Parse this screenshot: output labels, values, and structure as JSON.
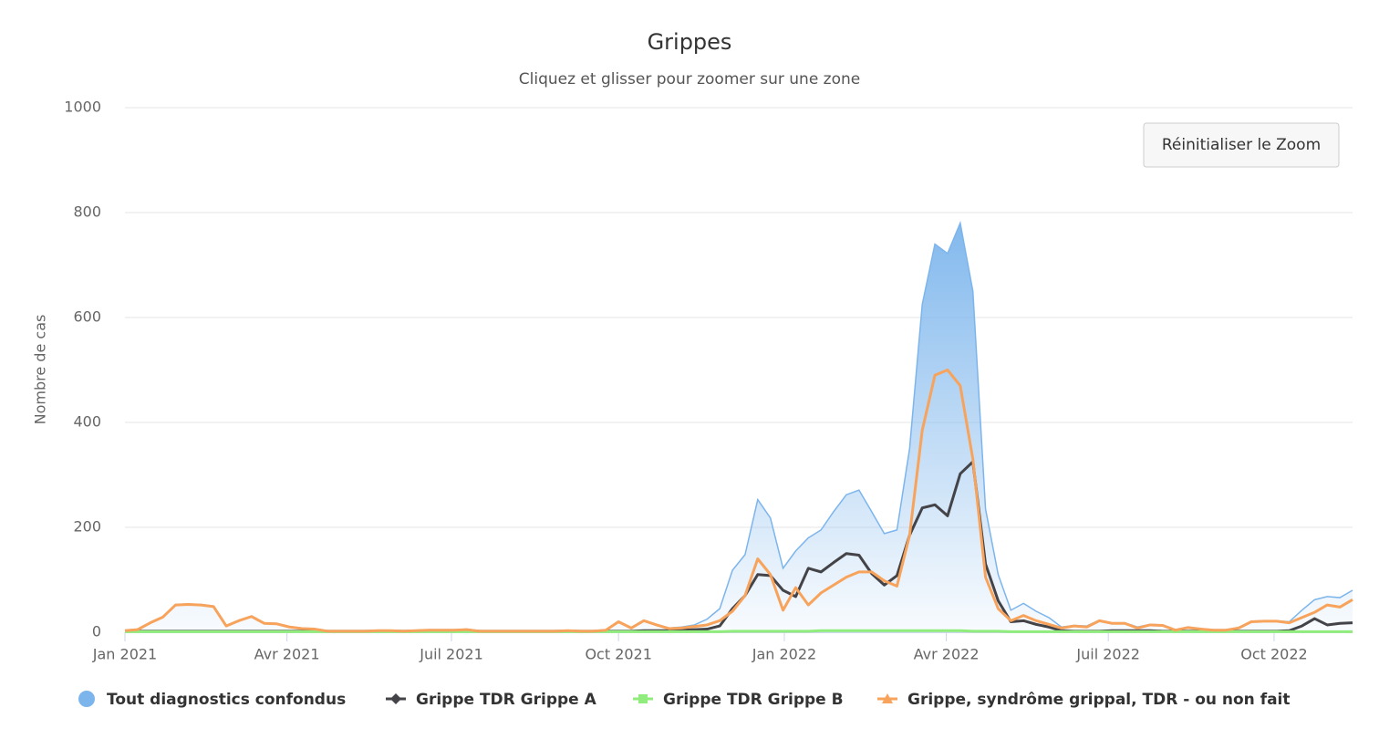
{
  "chart_data": {
    "type": "line",
    "title": "Grippes",
    "subtitle": "Cliquez et glisser pour zoomer sur une zone",
    "reset_button": "Réinitialiser le Zoom",
    "y_label": "Nombre de cas",
    "ylim": [
      0,
      1000
    ],
    "yticks": [
      0,
      200,
      400,
      600,
      800,
      1000
    ],
    "grid": true,
    "xlim": [
      0,
      97
    ],
    "xticks": [
      {
        "value": 0,
        "label": "Jan 2021"
      },
      {
        "value": 12.8,
        "label": "Avr 2021"
      },
      {
        "value": 25.8,
        "label": "Juil 2021"
      },
      {
        "value": 39,
        "label": "Oct 2021"
      },
      {
        "value": 52.1,
        "label": "Jan 2022"
      },
      {
        "value": 64.9,
        "label": "Avr 2022"
      },
      {
        "value": 77.7,
        "label": "Juil 2022"
      },
      {
        "value": 90.8,
        "label": "Oct 2022"
      }
    ],
    "legend": "bottom",
    "series": [
      {
        "name": "Tout diagnostics confondus",
        "color": "#7cb5ec",
        "kind": "area",
        "marker": "circle",
        "values": [
          4,
          6,
          19,
          30,
          53,
          54,
          53,
          50,
          13,
          23,
          31,
          18,
          17,
          11,
          8,
          7,
          3,
          3,
          3,
          3,
          4,
          4,
          3,
          4,
          5,
          5,
          5,
          6,
          3,
          3,
          3,
          3,
          3,
          3,
          3,
          4,
          3,
          3,
          5,
          21,
          9,
          23,
          15,
          8,
          10,
          14,
          25,
          45,
          118,
          148,
          253,
          218,
          122,
          155,
          180,
          195,
          230,
          262,
          271,
          230,
          188,
          195,
          350,
          625,
          740,
          722,
          780,
          650,
          235,
          110,
          42,
          55,
          40,
          28,
          10,
          13,
          12,
          23,
          18,
          18,
          10,
          15,
          14,
          5,
          10,
          7,
          5,
          5,
          9,
          21,
          22,
          22,
          20,
          42,
          62,
          68,
          66,
          80
        ]
      },
      {
        "name": "Grippe TDR Grippe A",
        "color": "#434348",
        "kind": "line",
        "marker": "diamond",
        "values": [
          2,
          2,
          2,
          2,
          2,
          2,
          2,
          2,
          2,
          2,
          2,
          2,
          2,
          2,
          2,
          2,
          2,
          2,
          2,
          2,
          2,
          2,
          2,
          2,
          2,
          2,
          2,
          2,
          2,
          2,
          2,
          2,
          2,
          2,
          2,
          2,
          2,
          2,
          2,
          2,
          2,
          3,
          3,
          3,
          4,
          5,
          6,
          12,
          45,
          70,
          110,
          108,
          80,
          68,
          122,
          115,
          133,
          150,
          147,
          112,
          90,
          108,
          185,
          237,
          243,
          222,
          302,
          325,
          130,
          60,
          20,
          22,
          15,
          10,
          3,
          2,
          2,
          2,
          3,
          3,
          3,
          3,
          2,
          2,
          2,
          2,
          2,
          2,
          2,
          2,
          2,
          2,
          3,
          12,
          26,
          14,
          17,
          18
        ]
      },
      {
        "name": "Grippe TDR Grippe B",
        "color": "#90ed7d",
        "kind": "line",
        "marker": "square",
        "values": [
          1,
          1,
          1,
          1,
          1,
          1,
          1,
          1,
          1,
          1,
          1,
          1,
          1,
          1,
          1,
          1,
          1,
          1,
          1,
          1,
          1,
          1,
          1,
          1,
          1,
          1,
          1,
          1,
          1,
          1,
          1,
          1,
          1,
          1,
          1,
          1,
          1,
          1,
          1,
          1,
          1,
          1,
          1,
          1,
          1,
          1,
          1,
          1,
          2,
          2,
          2,
          2,
          2,
          2,
          2,
          3,
          3,
          3,
          3,
          3,
          3,
          3,
          3,
          3,
          3,
          3,
          3,
          2,
          2,
          2,
          1,
          1,
          1,
          1,
          1,
          1,
          1,
          1,
          1,
          1,
          1,
          1,
          1,
          1,
          1,
          1,
          1,
          1,
          1,
          1,
          1,
          1,
          1,
          1,
          1,
          1,
          1,
          1
        ]
      },
      {
        "name": "Grippe, syndrôme grippal, TDR - ou non fait",
        "color": "#f7a35c",
        "kind": "line",
        "marker": "triangle",
        "values": [
          3,
          5,
          18,
          29,
          52,
          53,
          52,
          49,
          12,
          22,
          30,
          17,
          16,
          10,
          7,
          6,
          2,
          2,
          2,
          2,
          3,
          3,
          2,
          3,
          4,
          4,
          4,
          5,
          2,
          2,
          2,
          2,
          2,
          2,
          2,
          3,
          2,
          2,
          4,
          20,
          8,
          22,
          14,
          7,
          8,
          11,
          14,
          22,
          40,
          70,
          140,
          110,
          42,
          85,
          52,
          75,
          90,
          105,
          115,
          115,
          98,
          88,
          185,
          385,
          490,
          500,
          470,
          330,
          105,
          45,
          22,
          32,
          22,
          15,
          8,
          12,
          10,
          22,
          17,
          17,
          8,
          14,
          13,
          4,
          9,
          6,
          4,
          4,
          8,
          20,
          21,
          21,
          18,
          28,
          38,
          52,
          48,
          62
        ]
      }
    ]
  }
}
